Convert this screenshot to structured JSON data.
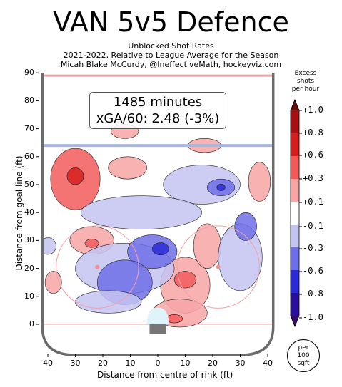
{
  "title": "VAN 5v5 Defence",
  "subtitle_lines": [
    "Unblocked Shot Rates",
    "2021-2022, Relative to League Average for the Season",
    "Micah Blake McCurdy, @IneffectiveMath, hockeyviz.com"
  ],
  "stats": {
    "minutes": "1485 minutes",
    "xga": "xGA/60: 2.48 (-3%)"
  },
  "colorbar": {
    "title": [
      "Excess",
      "shots",
      "per hour"
    ],
    "tick_labels": [
      "+1.0",
      "+0.8",
      "+0.6",
      "+0.3",
      "+0.1",
      "-0.1",
      "-0.3",
      "-0.6",
      "-0.8",
      "-1.0"
    ],
    "colors": [
      "#6b0a0a",
      "#a61010",
      "#d61e1e",
      "#f25a5a",
      "#f7a5a5",
      "#ffffff",
      "#c4c4f2",
      "#6e6ee8",
      "#2a2ad6",
      "#28109a",
      "#3b0a6e"
    ]
  },
  "per_unit": [
    "per",
    "100",
    "sqft"
  ],
  "chart_data": {
    "type": "heatmap",
    "title": "VAN 5v5 Defence",
    "xlabel": "Distance from centre of rink (ft)",
    "ylabel": "Distance from goal line (ft)",
    "x_tick_labels": [
      "40",
      "30",
      "20",
      "10",
      "0",
      "10",
      "20",
      "30",
      "40"
    ],
    "y_tick_labels": [
      "90",
      "80",
      "70",
      "60",
      "50",
      "40",
      "30",
      "20",
      "10",
      "0"
    ],
    "x_ticks": [
      -40,
      -30,
      -20,
      -10,
      0,
      10,
      20,
      30,
      40
    ],
    "y_ticks": [
      90,
      80,
      70,
      60,
      50,
      40,
      30,
      20,
      10,
      0
    ],
    "xlim": [
      -42,
      42
    ],
    "ylim": [
      -10,
      90
    ],
    "colorbar_range": [
      -1.0,
      1.0
    ],
    "regions": [
      {
        "x": -30,
        "y": 52,
        "rx": 9,
        "ry": 11,
        "value": 0.35
      },
      {
        "x": -30,
        "y": 53,
        "rx": 3,
        "ry": 3,
        "value": 0.6
      },
      {
        "x": -11,
        "y": 56,
        "rx": 7,
        "ry": 4,
        "value": 0.15
      },
      {
        "x": -12,
        "y": 69,
        "rx": 5,
        "ry": 2.5,
        "value": 0.15
      },
      {
        "x": 17,
        "y": 64,
        "rx": 6,
        "ry": 2.5,
        "value": 0.15
      },
      {
        "x": 37,
        "y": 51,
        "rx": 4,
        "ry": 7,
        "value": 0.15
      },
      {
        "x": -24,
        "y": 30,
        "rx": 8,
        "ry": 5,
        "value": 0.2
      },
      {
        "x": -24,
        "y": 29,
        "rx": 2.5,
        "ry": 1.5,
        "value": 0.45
      },
      {
        "x": -38,
        "y": 15,
        "rx": 3,
        "ry": 4,
        "value": 0.15
      },
      {
        "x": 10,
        "y": 14,
        "rx": 9,
        "ry": 10,
        "value": 0.25
      },
      {
        "x": 10,
        "y": 16,
        "rx": 4,
        "ry": 3,
        "value": 0.45
      },
      {
        "x": 8,
        "y": 4,
        "rx": 10,
        "ry": 5,
        "value": 0.25
      },
      {
        "x": 6,
        "y": 2,
        "rx": 3,
        "ry": 1.5,
        "value": 0.5
      },
      {
        "x": 18,
        "y": 28,
        "rx": 5,
        "ry": 8,
        "value": 0.15
      },
      {
        "x": 16,
        "y": 50,
        "rx": 14,
        "ry": 7,
        "value": -0.15
      },
      {
        "x": 23,
        "y": 49,
        "rx": 5,
        "ry": 3,
        "value": -0.3
      },
      {
        "x": 23,
        "y": 49,
        "rx": 1.5,
        "ry": 1.2,
        "value": -0.55
      },
      {
        "x": -6,
        "y": 40,
        "rx": 22,
        "ry": 6,
        "value": -0.12
      },
      {
        "x": -12,
        "y": 20,
        "rx": 18,
        "ry": 9,
        "value": -0.15
      },
      {
        "x": -2,
        "y": 26,
        "rx": 9,
        "ry": 6,
        "value": -0.3
      },
      {
        "x": 1,
        "y": 27,
        "rx": 3,
        "ry": 2.2,
        "value": -0.55
      },
      {
        "x": -12,
        "y": 15,
        "rx": 10,
        "ry": 8,
        "value": -0.3
      },
      {
        "x": 30,
        "y": 24,
        "rx": 8,
        "ry": 12,
        "value": -0.12
      },
      {
        "x": 32,
        "y": 35,
        "rx": 4,
        "ry": 5,
        "value": -0.3
      },
      {
        "x": -40,
        "y": 28,
        "rx": 3,
        "ry": 3,
        "value": -0.12
      },
      {
        "x": -18,
        "y": 8,
        "rx": 12,
        "ry": 4,
        "value": -0.12
      }
    ]
  }
}
